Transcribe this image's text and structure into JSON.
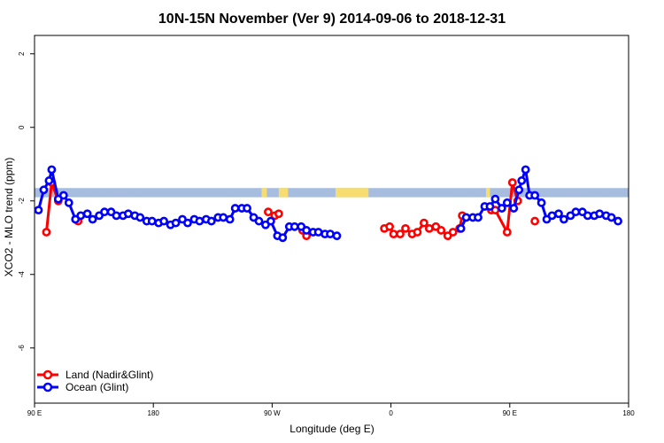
{
  "chart_data": {
    "type": "line",
    "title": "10N-15N November (Ver 9)   2014-09-06 to 2018-12-31",
    "xlabel": "Longitude (deg E)",
    "ylabel": "XCO2 - MLO trend (ppm)",
    "xlim": [
      90,
      540
    ],
    "ylim": [
      -7.5,
      2.5
    ],
    "x_ticks": [
      {
        "value": 90,
        "label": "90 E"
      },
      {
        "value": 180,
        "label": "180"
      },
      {
        "value": 270,
        "label": "90 W"
      },
      {
        "value": 360,
        "label": "0"
      },
      {
        "value": 450,
        "label": "90 E"
      },
      {
        "value": 540,
        "label": "180"
      }
    ],
    "y_ticks": [
      {
        "value": 2,
        "label": "2"
      },
      {
        "value": 0,
        "label": "0"
      },
      {
        "value": -2,
        "label": "-2"
      },
      {
        "value": -4,
        "label": "-4"
      },
      {
        "value": -6,
        "label": "-6"
      }
    ],
    "legend_position": "bottom-left",
    "colors": {
      "land": "#ff0000",
      "ocean": "#0000ff",
      "map_ocean": "#a7bde0",
      "map_land": "#f7dc6f"
    },
    "series": [
      {
        "name": "Land (Nadir&Glint)",
        "color": "#ff0000",
        "points": [
          [
            99,
            -2.85
          ],
          [
            103,
            -1.5
          ],
          [
            108,
            -2.0
          ],
          [
            123,
            -2.55
          ],
          [
            267,
            -2.3
          ],
          [
            272,
            -2.4
          ],
          [
            275,
            -2.35
          ],
          [
            293,
            -2.8
          ],
          [
            296,
            -2.95
          ],
          [
            355,
            -2.75
          ],
          [
            359,
            -2.7
          ],
          [
            362,
            -2.9
          ],
          [
            367,
            -2.9
          ],
          [
            371,
            -2.75
          ],
          [
            376,
            -2.9
          ],
          [
            380,
            -2.85
          ],
          [
            385,
            -2.6
          ],
          [
            389,
            -2.75
          ],
          [
            394,
            -2.7
          ],
          [
            398,
            -2.8
          ],
          [
            403,
            -2.95
          ],
          [
            407,
            -2.85
          ],
          [
            412,
            -2.75
          ],
          [
            414,
            -2.4
          ],
          [
            436,
            -2.25
          ],
          [
            439,
            -2.25
          ],
          [
            448,
            -2.85
          ],
          [
            452,
            -1.5
          ],
          [
            456,
            -2.0
          ],
          [
            469,
            -2.55
          ]
        ]
      },
      {
        "name": "Ocean (Glint)",
        "color": "#0000ff",
        "points": [
          [
            93,
            -2.25
          ],
          [
            97,
            -1.7
          ],
          [
            101,
            -1.45
          ],
          [
            103,
            -1.15
          ],
          [
            108,
            -1.95
          ],
          [
            112,
            -1.85
          ],
          [
            116,
            -2.05
          ],
          [
            121,
            -2.5
          ],
          [
            125,
            -2.4
          ],
          [
            130,
            -2.35
          ],
          [
            134,
            -2.5
          ],
          [
            139,
            -2.4
          ],
          [
            143,
            -2.3
          ],
          [
            148,
            -2.3
          ],
          [
            152,
            -2.4
          ],
          [
            157,
            -2.4
          ],
          [
            161,
            -2.35
          ],
          [
            166,
            -2.4
          ],
          [
            170,
            -2.45
          ],
          [
            175,
            -2.55
          ],
          [
            179,
            -2.55
          ],
          [
            184,
            -2.6
          ],
          [
            188,
            -2.55
          ],
          [
            193,
            -2.65
          ],
          [
            197,
            -2.6
          ],
          [
            202,
            -2.5
          ],
          [
            206,
            -2.6
          ],
          [
            211,
            -2.5
          ],
          [
            215,
            -2.55
          ],
          [
            220,
            -2.5
          ],
          [
            224,
            -2.55
          ],
          [
            229,
            -2.45
          ],
          [
            233,
            -2.45
          ],
          [
            238,
            -2.5
          ],
          [
            242,
            -2.2
          ],
          [
            247,
            -2.2
          ],
          [
            251,
            -2.2
          ],
          [
            256,
            -2.45
          ],
          [
            260,
            -2.55
          ],
          [
            265,
            -2.65
          ],
          [
            269,
            -2.55
          ],
          [
            274,
            -2.95
          ],
          [
            278,
            -3.0
          ],
          [
            283,
            -2.7
          ],
          [
            287,
            -2.7
          ],
          [
            292,
            -2.7
          ],
          [
            296,
            -2.8
          ],
          [
            301,
            -2.85
          ],
          [
            305,
            -2.85
          ],
          [
            310,
            -2.9
          ],
          [
            314,
            -2.9
          ],
          [
            319,
            -2.95
          ],
          [
            413,
            -2.75
          ],
          [
            417,
            -2.45
          ],
          [
            422,
            -2.45
          ],
          [
            426,
            -2.45
          ],
          [
            431,
            -2.15
          ],
          [
            435,
            -2.15
          ],
          [
            439,
            -1.95
          ],
          [
            444,
            -2.2
          ],
          [
            448,
            -2.05
          ],
          [
            453,
            -2.2
          ],
          [
            457,
            -1.7
          ],
          [
            459,
            -1.45
          ],
          [
            462,
            -1.15
          ],
          [
            465,
            -1.85
          ],
          [
            469,
            -1.85
          ],
          [
            474,
            -2.05
          ],
          [
            478,
            -2.5
          ],
          [
            482,
            -2.4
          ],
          [
            487,
            -2.35
          ],
          [
            491,
            -2.5
          ],
          [
            496,
            -2.4
          ],
          [
            500,
            -2.3
          ],
          [
            505,
            -2.3
          ],
          [
            509,
            -2.4
          ],
          [
            514,
            -2.4
          ],
          [
            518,
            -2.35
          ],
          [
            523,
            -2.4
          ],
          [
            527,
            -2.45
          ],
          [
            532,
            -2.55
          ]
        ]
      }
    ]
  }
}
